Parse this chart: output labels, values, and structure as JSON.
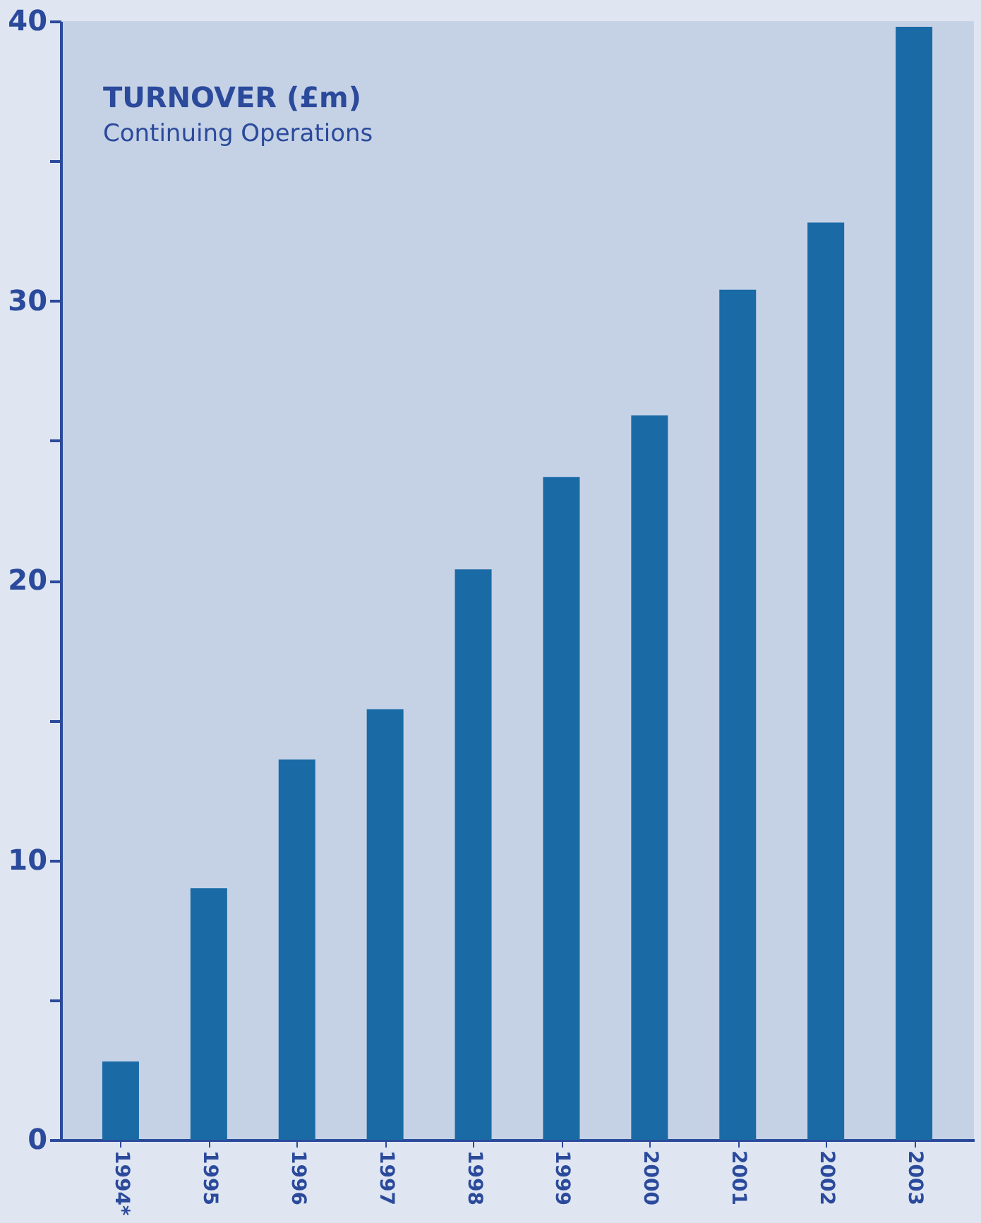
{
  "chart_data": {
    "type": "bar",
    "title": "TURNOVER (£m)",
    "subtitle": "Continuing Operations",
    "categories": [
      "1994*",
      "1995",
      "1996",
      "1997",
      "1998",
      "1999",
      "2000",
      "2001",
      "2002",
      "2003"
    ],
    "values": [
      2.8,
      9.0,
      13.6,
      15.4,
      20.4,
      23.7,
      25.9,
      30.4,
      32.8,
      39.8
    ],
    "color": "#1a6aa6",
    "ylim": [
      0,
      40
    ],
    "yticks": [
      0,
      {
        "value": 5,
        "label": null
      },
      10,
      {
        "value": 15,
        "label": null
      },
      20,
      {
        "value": 25,
        "label": null
      },
      30,
      {
        "value": 35,
        "label": null
      },
      40
    ],
    "grid": false
  }
}
